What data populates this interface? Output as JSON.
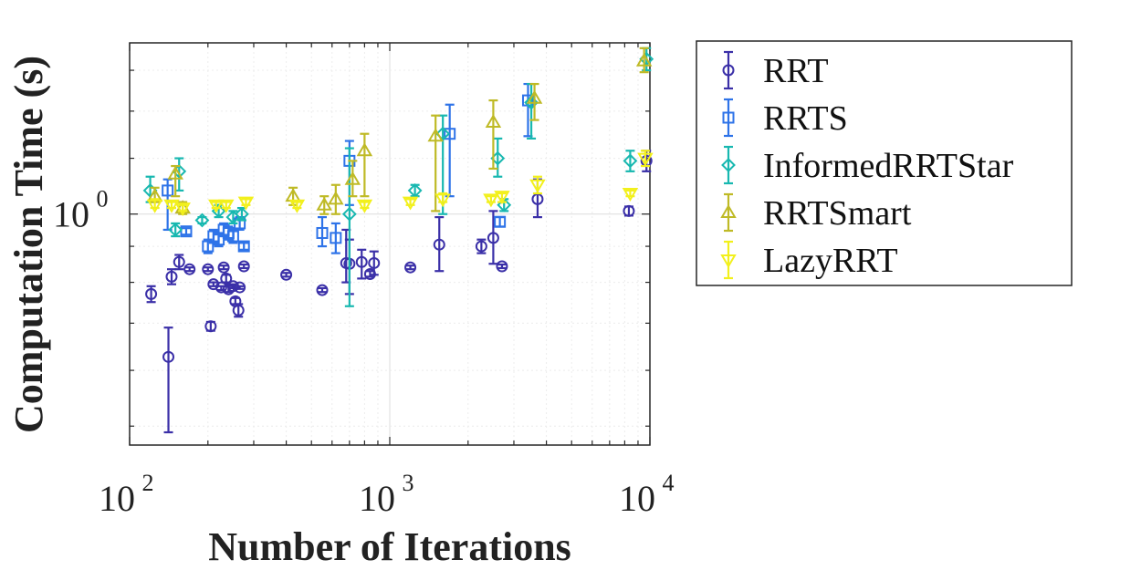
{
  "chart_data": {
    "type": "scatter",
    "title": "",
    "xlabel": "Number of Iterations",
    "ylabel": "Computation Time (s)",
    "xscale": "log",
    "yscale": "log",
    "xlim": [
      100,
      10000
    ],
    "ylim": [
      0.47,
      1.75
    ],
    "x_ticks": [
      {
        "base": "10",
        "exp": "2"
      },
      {
        "base": "10",
        "exp": "3"
      },
      {
        "base": "10",
        "exp": "4"
      }
    ],
    "y_ticks": [
      {
        "value": 1.0,
        "base": "10",
        "exp": "0"
      }
    ],
    "grid": true,
    "legend_position": "outside-right",
    "series": [
      {
        "name": "RRT",
        "color": "#3b30a8",
        "marker": "circle",
        "points": [
          {
            "x": 121,
            "y": 0.77,
            "lo": 0.75,
            "hi": 0.79
          },
          {
            "x": 141,
            "y": 0.627,
            "lo": 0.49,
            "hi": 0.69
          },
          {
            "x": 145,
            "y": 0.815,
            "lo": 0.795,
            "hi": 0.835
          },
          {
            "x": 155,
            "y": 0.855,
            "lo": 0.835,
            "hi": 0.875
          },
          {
            "x": 170,
            "y": 0.835,
            "lo": 0.83,
            "hi": 0.84
          },
          {
            "x": 200,
            "y": 0.835,
            "lo": 0.83,
            "hi": 0.84
          },
          {
            "x": 205,
            "y": 0.693,
            "lo": 0.683,
            "hi": 0.703
          },
          {
            "x": 210,
            "y": 0.795,
            "lo": 0.79,
            "hi": 0.8
          },
          {
            "x": 225,
            "y": 0.787,
            "lo": 0.78,
            "hi": 0.79
          },
          {
            "x": 230,
            "y": 0.84,
            "lo": 0.835,
            "hi": 0.845
          },
          {
            "x": 235,
            "y": 0.81,
            "lo": 0.8,
            "hi": 0.82
          },
          {
            "x": 240,
            "y": 0.782,
            "lo": 0.775,
            "hi": 0.79
          },
          {
            "x": 250,
            "y": 0.79,
            "lo": 0.785,
            "hi": 0.795
          },
          {
            "x": 255,
            "y": 0.752,
            "lo": 0.745,
            "hi": 0.76
          },
          {
            "x": 262,
            "y": 0.73,
            "lo": 0.715,
            "hi": 0.745
          },
          {
            "x": 265,
            "y": 0.787,
            "lo": 0.783,
            "hi": 0.79
          },
          {
            "x": 275,
            "y": 0.843,
            "lo": 0.838,
            "hi": 0.848
          },
          {
            "x": 400,
            "y": 0.82,
            "lo": 0.815,
            "hi": 0.825
          },
          {
            "x": 550,
            "y": 0.78,
            "lo": 0.775,
            "hi": 0.785
          },
          {
            "x": 680,
            "y": 0.852,
            "lo": 0.8,
            "hi": 0.95
          },
          {
            "x": 700,
            "y": 0.85,
            "lo": 0.77,
            "hi": 0.92
          },
          {
            "x": 780,
            "y": 0.855,
            "lo": 0.81,
            "hi": 0.89
          },
          {
            "x": 840,
            "y": 0.822,
            "lo": 0.815,
            "hi": 0.83
          },
          {
            "x": 870,
            "y": 0.852,
            "lo": 0.82,
            "hi": 0.885
          },
          {
            "x": 1200,
            "y": 0.84,
            "lo": 0.835,
            "hi": 0.845
          },
          {
            "x": 1550,
            "y": 0.905,
            "lo": 0.83,
            "hi": 0.99
          },
          {
            "x": 2250,
            "y": 0.9,
            "lo": 0.88,
            "hi": 0.92
          },
          {
            "x": 2500,
            "y": 0.925,
            "lo": 0.85,
            "hi": 1.01
          },
          {
            "x": 2700,
            "y": 0.843,
            "lo": 0.838,
            "hi": 0.848
          },
          {
            "x": 3700,
            "y": 1.05,
            "lo": 0.99,
            "hi": 1.12
          },
          {
            "x": 8300,
            "y": 1.01,
            "lo": 0.995,
            "hi": 1.025
          },
          {
            "x": 9700,
            "y": 1.19,
            "lo": 1.15,
            "hi": 1.23
          }
        ]
      },
      {
        "name": "RRTS",
        "color": "#2e73e8",
        "marker": "square",
        "points": [
          {
            "x": 140,
            "y": 1.08,
            "lo": 0.95,
            "hi": 1.12
          },
          {
            "x": 165,
            "y": 0.945,
            "lo": 0.935,
            "hi": 0.955
          },
          {
            "x": 200,
            "y": 0.9,
            "lo": 0.88,
            "hi": 0.92
          },
          {
            "x": 210,
            "y": 0.93,
            "lo": 0.91,
            "hi": 0.95
          },
          {
            "x": 220,
            "y": 0.92,
            "lo": 0.9,
            "hi": 0.94
          },
          {
            "x": 230,
            "y": 0.95,
            "lo": 0.93,
            "hi": 0.97
          },
          {
            "x": 240,
            "y": 0.94,
            "lo": 0.92,
            "hi": 0.96
          },
          {
            "x": 250,
            "y": 0.93,
            "lo": 0.91,
            "hi": 0.95
          },
          {
            "x": 265,
            "y": 0.97,
            "lo": 0.95,
            "hi": 0.99
          },
          {
            "x": 275,
            "y": 0.9,
            "lo": 0.89,
            "hi": 0.91
          },
          {
            "x": 550,
            "y": 0.94,
            "lo": 0.9,
            "hi": 0.99
          },
          {
            "x": 620,
            "y": 0.925,
            "lo": 0.88,
            "hi": 0.97
          },
          {
            "x": 700,
            "y": 1.19,
            "lo": 1.03,
            "hi": 1.27
          },
          {
            "x": 1700,
            "y": 1.3,
            "lo": 1.06,
            "hi": 1.43
          },
          {
            "x": 2650,
            "y": 0.975,
            "lo": 0.96,
            "hi": 0.99
          },
          {
            "x": 3400,
            "y": 1.45,
            "lo": 1.29,
            "hi": 1.53
          }
        ]
      },
      {
        "name": "InformedRRTStar",
        "color": "#18b8b0",
        "marker": "diamond",
        "points": [
          {
            "x": 120,
            "y": 1.08,
            "lo": 1.04,
            "hi": 1.13
          },
          {
            "x": 150,
            "y": 0.95,
            "lo": 0.93,
            "hi": 0.97
          },
          {
            "x": 155,
            "y": 1.15,
            "lo": 1.08,
            "hi": 1.2
          },
          {
            "x": 190,
            "y": 0.98,
            "lo": 0.97,
            "hi": 0.99
          },
          {
            "x": 220,
            "y": 1.01,
            "lo": 0.99,
            "hi": 1.03
          },
          {
            "x": 250,
            "y": 0.99,
            "lo": 0.97,
            "hi": 1.01
          },
          {
            "x": 270,
            "y": 1.0,
            "lo": 0.98,
            "hi": 1.02
          },
          {
            "x": 700,
            "y": 1.0,
            "lo": 0.74,
            "hi": 1.24
          },
          {
            "x": 1250,
            "y": 1.08,
            "lo": 1.06,
            "hi": 1.1
          },
          {
            "x": 1600,
            "y": 1.3,
            "lo": 1.0,
            "hi": 1.38
          },
          {
            "x": 2600,
            "y": 1.2,
            "lo": 1.13,
            "hi": 1.28
          },
          {
            "x": 2750,
            "y": 1.03,
            "lo": 1.01,
            "hi": 1.05
          },
          {
            "x": 3500,
            "y": 1.44,
            "lo": 1.28,
            "hi": 1.53
          },
          {
            "x": 8400,
            "y": 1.19,
            "lo": 1.15,
            "hi": 1.23
          },
          {
            "x": 9700,
            "y": 1.66,
            "lo": 1.6,
            "hi": 1.72
          }
        ]
      },
      {
        "name": "RRTSmart",
        "color": "#bfba26",
        "marker": "triangle-up",
        "points": [
          {
            "x": 125,
            "y": 1.06,
            "lo": 1.04,
            "hi": 1.09
          },
          {
            "x": 150,
            "y": 1.14,
            "lo": 1.06,
            "hi": 1.17
          },
          {
            "x": 160,
            "y": 1.02,
            "lo": 1.0,
            "hi": 1.04
          },
          {
            "x": 425,
            "y": 1.06,
            "lo": 1.03,
            "hi": 1.09
          },
          {
            "x": 560,
            "y": 1.03,
            "lo": 1.0,
            "hi": 1.06
          },
          {
            "x": 620,
            "y": 1.05,
            "lo": 1.0,
            "hi": 1.1
          },
          {
            "x": 720,
            "y": 1.12,
            "lo": 1.06,
            "hi": 1.19
          },
          {
            "x": 800,
            "y": 1.23,
            "lo": 1.06,
            "hi": 1.3
          },
          {
            "x": 1500,
            "y": 1.29,
            "lo": 1.01,
            "hi": 1.38
          },
          {
            "x": 2500,
            "y": 1.35,
            "lo": 1.16,
            "hi": 1.45
          },
          {
            "x": 3600,
            "y": 1.46,
            "lo": 1.36,
            "hi": 1.53
          },
          {
            "x": 9500,
            "y": 1.65,
            "lo": 1.59,
            "hi": 1.72
          }
        ]
      },
      {
        "name": "LazyRRT",
        "color": "#f2f01c",
        "marker": "triangle-down",
        "points": [
          {
            "x": 125,
            "y": 1.03,
            "lo": 1.02,
            "hi": 1.05
          },
          {
            "x": 145,
            "y": 1.03,
            "lo": 1.02,
            "hi": 1.04
          },
          {
            "x": 160,
            "y": 1.02,
            "lo": 1.01,
            "hi": 1.03
          },
          {
            "x": 215,
            "y": 1.03,
            "lo": 1.02,
            "hi": 1.04
          },
          {
            "x": 235,
            "y": 1.03,
            "lo": 1.02,
            "hi": 1.04
          },
          {
            "x": 280,
            "y": 1.04,
            "lo": 1.03,
            "hi": 1.05
          },
          {
            "x": 440,
            "y": 1.03,
            "lo": 1.02,
            "hi": 1.04
          },
          {
            "x": 800,
            "y": 1.03,
            "lo": 1.02,
            "hi": 1.04
          },
          {
            "x": 1200,
            "y": 1.04,
            "lo": 1.03,
            "hi": 1.05
          },
          {
            "x": 1600,
            "y": 1.05,
            "lo": 1.04,
            "hi": 1.07
          },
          {
            "x": 2450,
            "y": 1.05,
            "lo": 1.04,
            "hi": 1.06
          },
          {
            "x": 2700,
            "y": 1.06,
            "lo": 1.04,
            "hi": 1.07
          },
          {
            "x": 3700,
            "y": 1.1,
            "lo": 1.07,
            "hi": 1.13
          },
          {
            "x": 8400,
            "y": 1.07,
            "lo": 1.06,
            "hi": 1.08
          },
          {
            "x": 9600,
            "y": 1.2,
            "lo": 1.17,
            "hi": 1.23
          }
        ]
      }
    ]
  }
}
